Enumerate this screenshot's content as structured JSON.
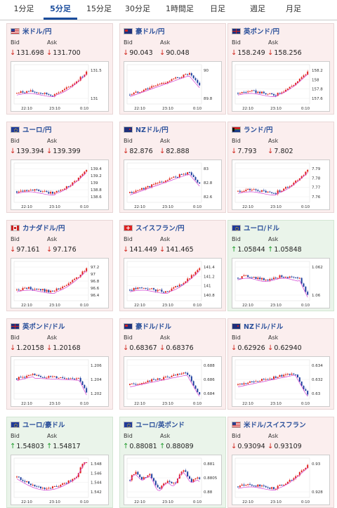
{
  "tabs": [
    {
      "label": "1分足"
    },
    {
      "label": "5分足"
    },
    {
      "label": "15分足"
    },
    {
      "label": "30分足"
    },
    {
      "label": "1時間足"
    },
    {
      "label": "日足"
    },
    {
      "label": "週足"
    },
    {
      "label": "月足"
    }
  ],
  "active_tab": 1,
  "labels": {
    "bid": "Bid",
    "ask": "Ask"
  },
  "colors": {
    "up_candle": "#e0241b",
    "down_candle": "#1e3f9e",
    "ma": "#d33fd3",
    "text_up": "#1c9a28",
    "text_down": "#d0261d",
    "link": "#2a4f9a"
  },
  "cards": [
    {
      "name": "米ドル/円",
      "flag": "us",
      "dir": "down",
      "bid": "131.698",
      "ask": "131.700",
      "chart_data": {
        "type": "candlestick",
        "x_ticks": [
          "22:10",
          "23:10",
          "0:10"
        ],
        "y_ticks": [
          "131.5",
          "131"
        ],
        "trend": "up"
      }
    },
    {
      "name": "豪ドル/円",
      "flag": "au",
      "dir": "down",
      "bid": "90.043",
      "ask": "90.048",
      "chart_data": {
        "type": "candlestick",
        "x_ticks": [
          "22:10",
          "23:10",
          "0:10"
        ],
        "y_ticks": [
          "90",
          "89.8"
        ],
        "trend": "up-peak"
      }
    },
    {
      "name": "英ポンド/円",
      "flag": "uk",
      "dir": "down",
      "bid": "158.249",
      "ask": "158.256",
      "chart_data": {
        "type": "candlestick",
        "x_ticks": [
          "22:10",
          "23:10",
          "0:10"
        ],
        "y_ticks": [
          "158.2",
          "158",
          "157.8",
          "157.6"
        ],
        "trend": "up"
      }
    },
    {
      "name": "ユーロ/円",
      "flag": "eu",
      "dir": "down",
      "bid": "139.394",
      "ask": "139.399",
      "chart_data": {
        "type": "candlestick",
        "x_ticks": [
          "22:10",
          "23:10",
          "0:10"
        ],
        "y_ticks": [
          "139.4",
          "139.2",
          "139",
          "138.8",
          "138.6"
        ],
        "trend": "up"
      }
    },
    {
      "name": "NZドル/円",
      "flag": "nz",
      "dir": "down",
      "bid": "82.876",
      "ask": "82.888",
      "chart_data": {
        "type": "candlestick",
        "x_ticks": [
          "22:10",
          "23:10",
          "0:10"
        ],
        "y_ticks": [
          "83",
          "82.8",
          "82.6"
        ],
        "trend": "up-peak"
      }
    },
    {
      "name": "ランド/円",
      "flag": "za",
      "dir": "down",
      "bid": "7.793",
      "ask": "7.802",
      "chart_data": {
        "type": "candlestick",
        "x_ticks": [
          "22:10",
          "23:10",
          "0:10"
        ],
        "y_ticks": [
          "7.79",
          "7.78",
          "7.77",
          "7.76"
        ],
        "trend": "up"
      }
    },
    {
      "name": "カナダドル/円",
      "flag": "ca",
      "dir": "down",
      "bid": "97.161",
      "ask": "97.176",
      "chart_data": {
        "type": "candlestick",
        "x_ticks": [
          "22:10",
          "23:10",
          "0:10"
        ],
        "y_ticks": [
          "97.2",
          "97",
          "96.8",
          "96.6",
          "96.4"
        ],
        "trend": "up"
      }
    },
    {
      "name": "スイスフラン/円",
      "flag": "ch",
      "dir": "down",
      "bid": "141.449",
      "ask": "141.465",
      "chart_data": {
        "type": "candlestick",
        "x_ticks": [
          "22:10",
          "23:10",
          "0:10"
        ],
        "y_ticks": [
          "141.4",
          "141.2",
          "141",
          "140.8"
        ],
        "trend": "up"
      }
    },
    {
      "name": "ユーロ/ドル",
      "flag": "eu",
      "dir": "up",
      "bid": "1.05844",
      "ask": "1.05848",
      "chart_data": {
        "type": "candlestick",
        "x_ticks": [
          "22:10",
          "23:10",
          "0:10"
        ],
        "y_ticks": [
          "1.062",
          "1.06"
        ],
        "trend": "flat-drop"
      }
    },
    {
      "name": "英ポンド/ドル",
      "flag": "uk",
      "dir": "down",
      "bid": "1.20158",
      "ask": "1.20168",
      "chart_data": {
        "type": "candlestick",
        "x_ticks": [
          "22:10",
          "23:10",
          "0:10"
        ],
        "y_ticks": [
          "1.206",
          "1.204",
          "1.202"
        ],
        "trend": "down"
      }
    },
    {
      "name": "豪ドル/ドル",
      "flag": "au",
      "dir": "down",
      "bid": "0.68367",
      "ask": "0.68376",
      "chart_data": {
        "type": "candlestick",
        "x_ticks": [
          "22:10",
          "23:10",
          "0:10"
        ],
        "y_ticks": [
          "0.688",
          "0.686",
          "0.684"
        ],
        "trend": "up-drop"
      }
    },
    {
      "name": "NZドル/ドル",
      "flag": "nz",
      "dir": "down",
      "bid": "0.62926",
      "ask": "0.62940",
      "chart_data": {
        "type": "candlestick",
        "x_ticks": [
          "22:10",
          "23:10",
          "0:10"
        ],
        "y_ticks": [
          "0.634",
          "0.632",
          "0.63"
        ],
        "trend": "up-drop"
      }
    },
    {
      "name": "ユーロ/豪ドル",
      "flag": "eu",
      "dir": "up",
      "bid": "1.54803",
      "ask": "1.54817",
      "chart_data": {
        "type": "candlestick",
        "x_ticks": [
          "22:10",
          "23:10",
          "0:10"
        ],
        "y_ticks": [
          "1.548",
          "1.546",
          "1.544",
          "1.542"
        ],
        "trend": "valley"
      }
    },
    {
      "name": "ユーロ/英ポンド",
      "flag": "eu",
      "dir": "up",
      "bid": "0.88081",
      "ask": "0.88089",
      "chart_data": {
        "type": "candlestick",
        "x_ticks": [
          "22:10",
          "23:10",
          "0:10"
        ],
        "y_ticks": [
          "0.881",
          "0.8805",
          "0.88"
        ],
        "trend": "volatile"
      }
    },
    {
      "name": "米ドル/スイスフラン",
      "flag": "us",
      "dir": "down",
      "bid": "0.93094",
      "ask": "0.93109",
      "chart_data": {
        "type": "candlestick",
        "x_ticks": [
          "22:10",
          "23:10",
          "0:10"
        ],
        "y_ticks": [
          "0.93",
          "0.928"
        ],
        "trend": "up"
      }
    }
  ]
}
